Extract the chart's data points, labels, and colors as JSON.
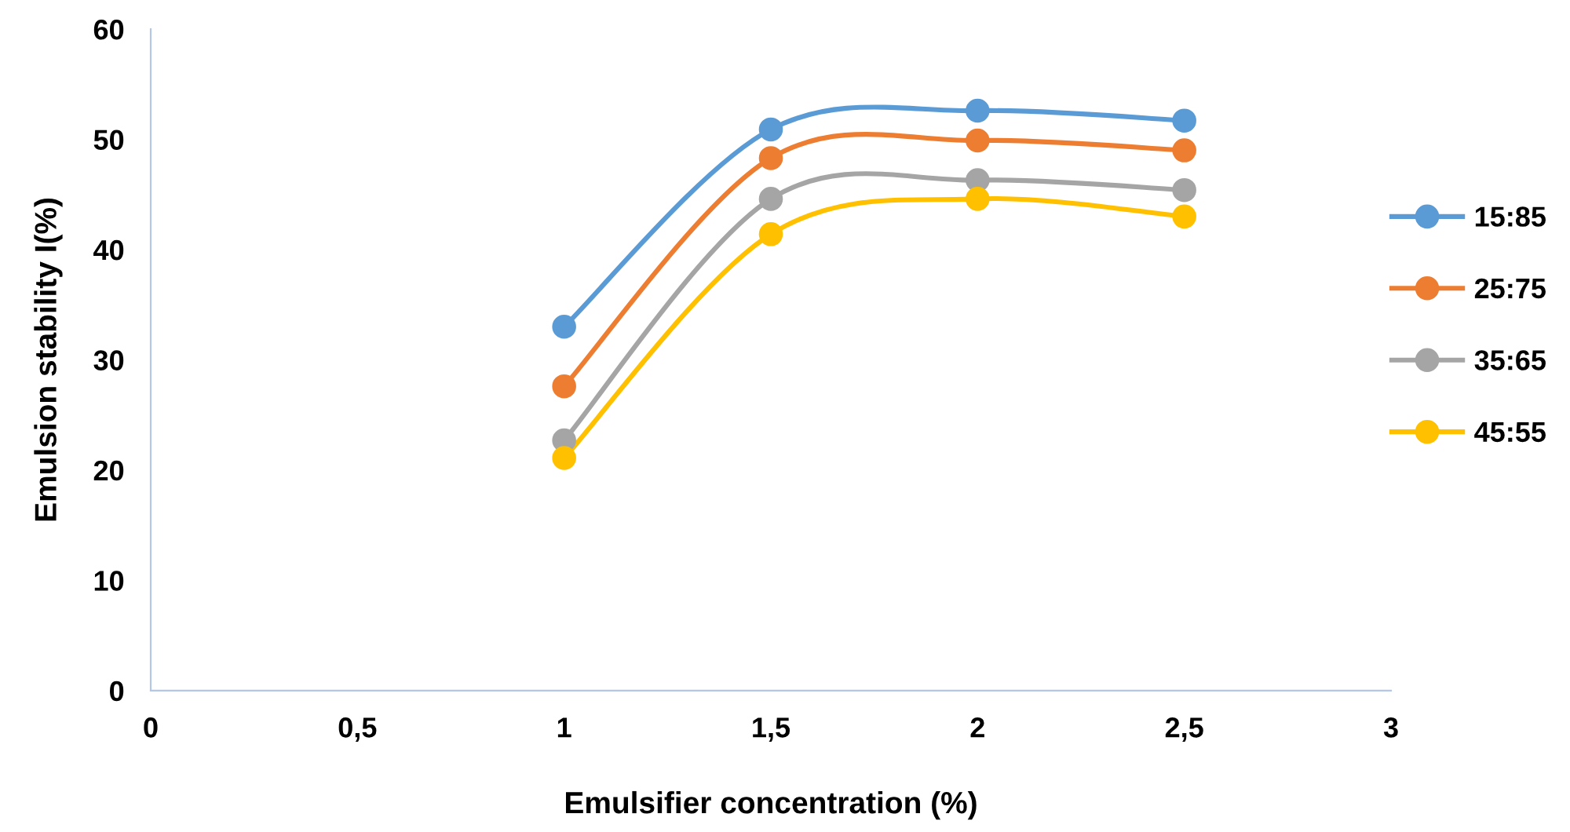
{
  "chart_data": {
    "type": "line",
    "xlabel": "Emulsifier concentration (%)",
    "ylabel": "Emulsion stability I(%)",
    "x": [
      1,
      1.5,
      2,
      2.5
    ],
    "series": [
      {
        "name": "15:85",
        "color": "#5b9bd5",
        "values": [
          33.0,
          50.9,
          52.6,
          51.7
        ]
      },
      {
        "name": "25:75",
        "color": "#ed7d31",
        "values": [
          27.6,
          48.3,
          49.9,
          49.0
        ]
      },
      {
        "name": "35:65",
        "color": "#a5a5a5",
        "values": [
          22.7,
          44.6,
          46.3,
          45.4
        ]
      },
      {
        "name": "45:55",
        "color": "#ffc000",
        "values": [
          21.1,
          41.4,
          44.6,
          43.0
        ]
      }
    ],
    "xlim": [
      0,
      3
    ],
    "ylim": [
      0,
      60
    ],
    "xticks": [
      0,
      {
        "value": 0.5,
        "label": "0,5"
      },
      1,
      {
        "value": 1.5,
        "label": "1,5"
      },
      2,
      {
        "value": 2.5,
        "label": "2,5"
      },
      3
    ],
    "yticks": [
      0,
      10,
      20,
      30,
      40,
      50,
      60
    ],
    "grid": false,
    "legend": "right",
    "marker": "circle",
    "line_style": "solid"
  }
}
